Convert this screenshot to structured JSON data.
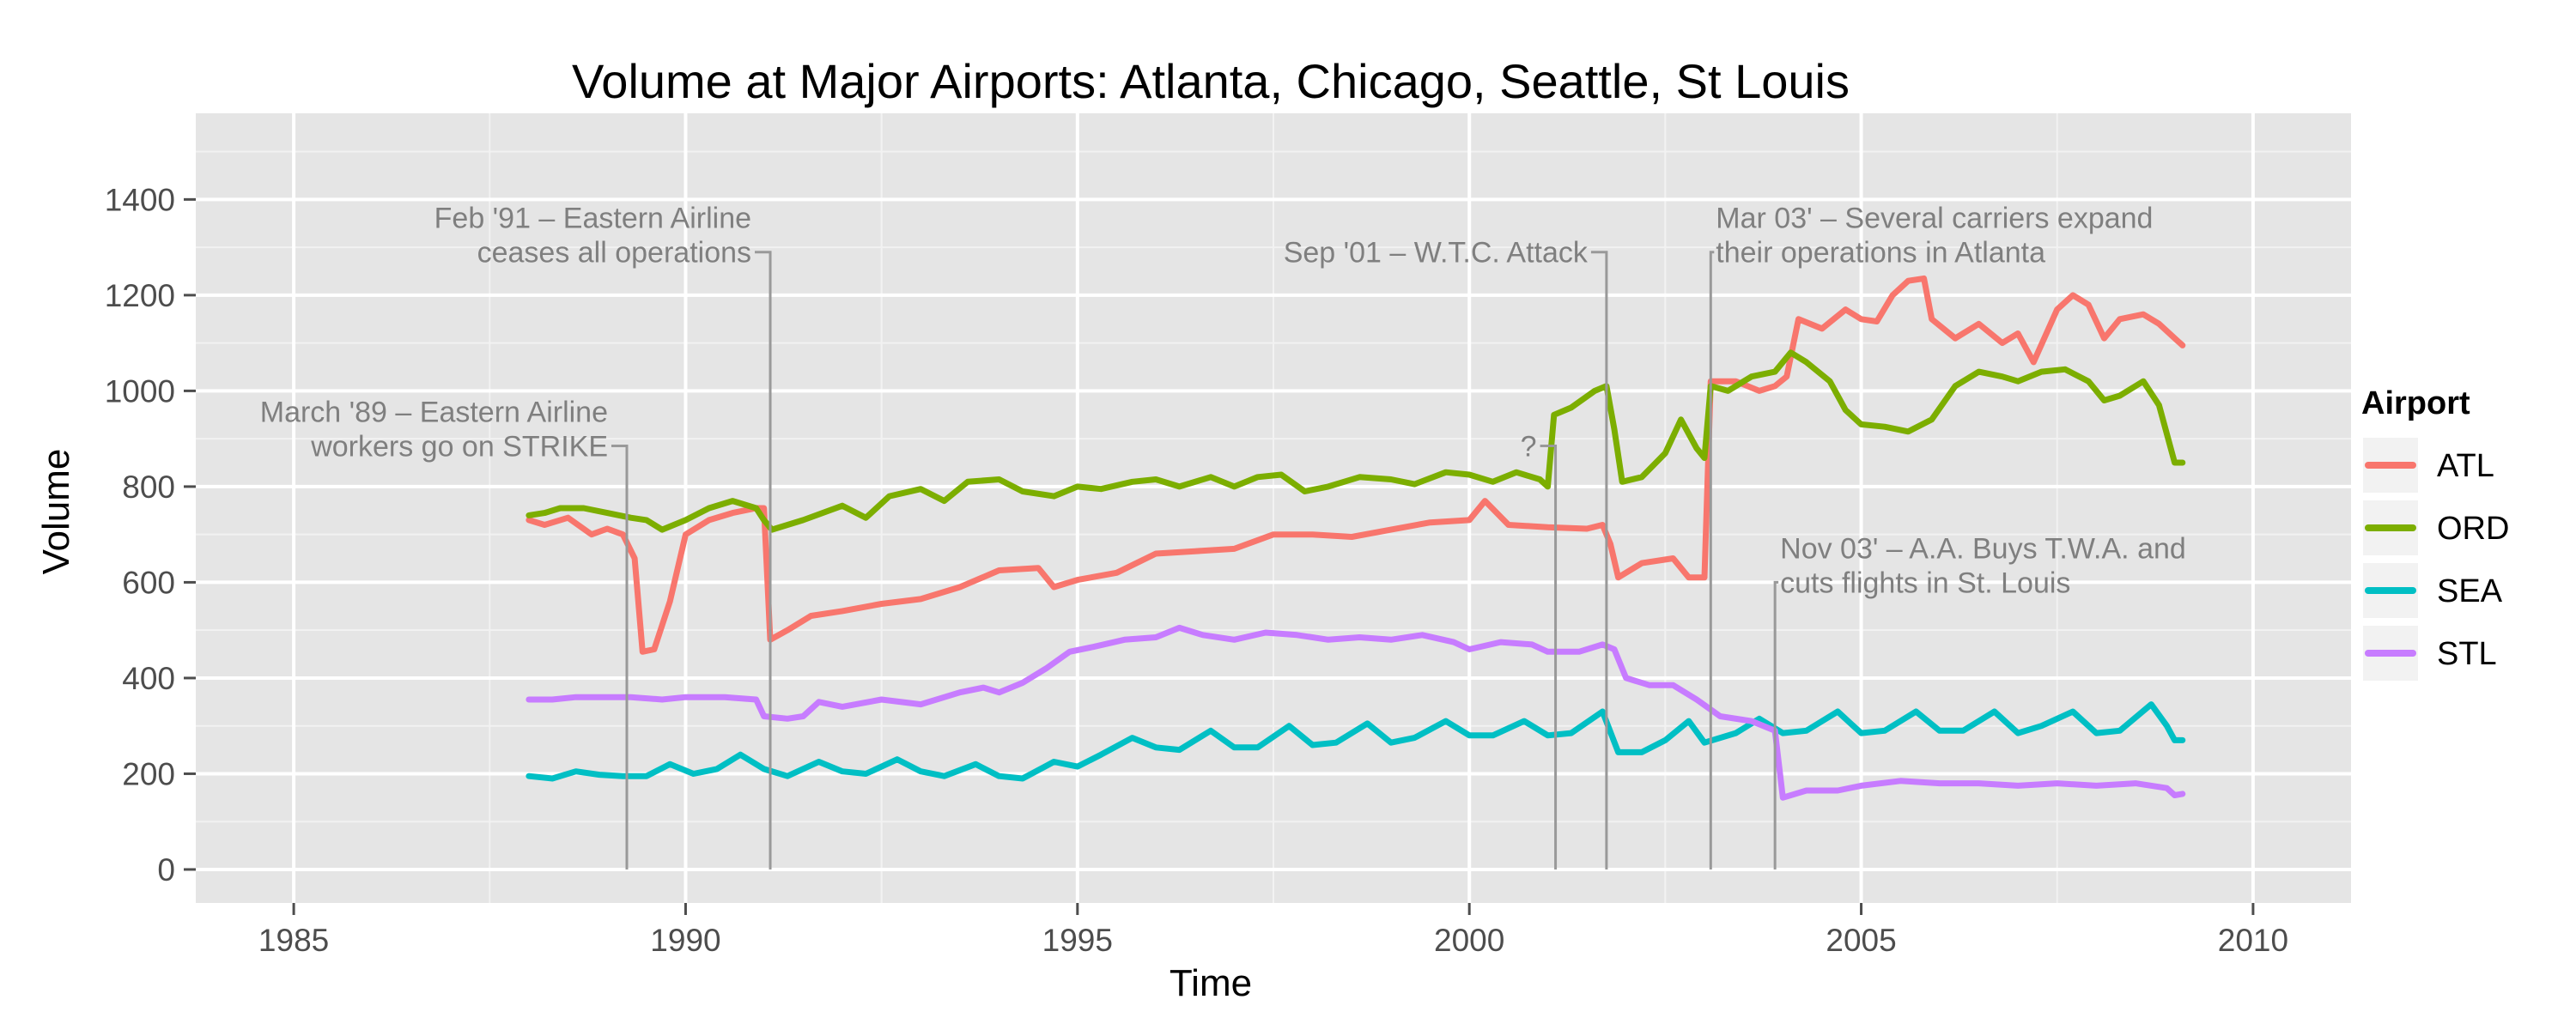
{
  "chart_data": {
    "type": "line",
    "title": "Volume at Major Airports: Atlanta, Chicago, Seattle, St Louis",
    "xlabel": "Time",
    "ylabel": "Volume",
    "xlim": [
      1983.75,
      2011.25
    ],
    "ylim": [
      -70,
      1580
    ],
    "x_ticks": [
      1985,
      1990,
      1995,
      2000,
      2005,
      2010
    ],
    "y_ticks": [
      0,
      200,
      400,
      600,
      800,
      1000,
      1200,
      1400
    ],
    "grid": true,
    "legend": {
      "title": "Airport",
      "position": "right"
    },
    "series": [
      {
        "name": "ATL",
        "color": "#F8766D",
        "points": [
          [
            1988.0,
            730
          ],
          [
            1988.2,
            720
          ],
          [
            1988.5,
            735
          ],
          [
            1988.8,
            700
          ],
          [
            1989.0,
            712
          ],
          [
            1989.2,
            700
          ],
          [
            1989.35,
            650
          ],
          [
            1989.45,
            455
          ],
          [
            1989.6,
            460
          ],
          [
            1989.8,
            560
          ],
          [
            1990.0,
            700
          ],
          [
            1990.3,
            730
          ],
          [
            1990.6,
            745
          ],
          [
            1990.9,
            755
          ],
          [
            1991.0,
            755
          ],
          [
            1991.08,
            480
          ],
          [
            1991.3,
            500
          ],
          [
            1991.6,
            530
          ],
          [
            1992.0,
            540
          ],
          [
            1992.5,
            555
          ],
          [
            1993.0,
            565
          ],
          [
            1993.5,
            590
          ],
          [
            1994.0,
            625
          ],
          [
            1994.5,
            630
          ],
          [
            1994.7,
            590
          ],
          [
            1995.0,
            605
          ],
          [
            1995.5,
            620
          ],
          [
            1996.0,
            660
          ],
          [
            1996.5,
            665
          ],
          [
            1997.0,
            670
          ],
          [
            1997.5,
            700
          ],
          [
            1998.0,
            700
          ],
          [
            1998.5,
            695
          ],
          [
            1999.0,
            710
          ],
          [
            1999.5,
            725
          ],
          [
            2000.0,
            730
          ],
          [
            2000.2,
            770
          ],
          [
            2000.5,
            720
          ],
          [
            2001.0,
            715
          ],
          [
            2001.5,
            712
          ],
          [
            2001.7,
            720
          ],
          [
            2001.8,
            680
          ],
          [
            2001.9,
            610
          ],
          [
            2002.2,
            640
          ],
          [
            2002.6,
            650
          ],
          [
            2002.8,
            610
          ],
          [
            2003.0,
            610
          ],
          [
            2003.08,
            1020
          ],
          [
            2003.4,
            1020
          ],
          [
            2003.7,
            1000
          ],
          [
            2003.9,
            1010
          ],
          [
            2004.05,
            1030
          ],
          [
            2004.2,
            1150
          ],
          [
            2004.5,
            1130
          ],
          [
            2004.8,
            1170
          ],
          [
            2005.0,
            1150
          ],
          [
            2005.2,
            1145
          ],
          [
            2005.4,
            1200
          ],
          [
            2005.6,
            1230
          ],
          [
            2005.8,
            1235
          ],
          [
            2005.9,
            1150
          ],
          [
            2006.2,
            1110
          ],
          [
            2006.5,
            1140
          ],
          [
            2006.8,
            1100
          ],
          [
            2007.0,
            1120
          ],
          [
            2007.2,
            1060
          ],
          [
            2007.5,
            1170
          ],
          [
            2007.7,
            1200
          ],
          [
            2007.9,
            1180
          ],
          [
            2008.1,
            1110
          ],
          [
            2008.3,
            1150
          ],
          [
            2008.6,
            1160
          ],
          [
            2008.8,
            1140
          ],
          [
            2009.0,
            1110
          ],
          [
            2009.1,
            1095
          ]
        ]
      },
      {
        "name": "ORD",
        "color": "#7CAE00",
        "points": [
          [
            1988.0,
            740
          ],
          [
            1988.2,
            745
          ],
          [
            1988.4,
            755
          ],
          [
            1988.7,
            755
          ],
          [
            1989.0,
            745
          ],
          [
            1989.3,
            735
          ],
          [
            1989.5,
            730
          ],
          [
            1989.7,
            710
          ],
          [
            1990.0,
            730
          ],
          [
            1990.3,
            755
          ],
          [
            1990.6,
            770
          ],
          [
            1990.9,
            755
          ],
          [
            1991.0,
            730
          ],
          [
            1991.1,
            710
          ],
          [
            1991.5,
            730
          ],
          [
            1992.0,
            760
          ],
          [
            1992.3,
            735
          ],
          [
            1992.6,
            780
          ],
          [
            1993.0,
            795
          ],
          [
            1993.3,
            770
          ],
          [
            1993.6,
            810
          ],
          [
            1994.0,
            815
          ],
          [
            1994.3,
            790
          ],
          [
            1994.7,
            780
          ],
          [
            1995.0,
            800
          ],
          [
            1995.3,
            795
          ],
          [
            1995.7,
            810
          ],
          [
            1996.0,
            815
          ],
          [
            1996.3,
            800
          ],
          [
            1996.7,
            820
          ],
          [
            1997.0,
            800
          ],
          [
            1997.3,
            820
          ],
          [
            1997.6,
            825
          ],
          [
            1997.9,
            790
          ],
          [
            1998.2,
            800
          ],
          [
            1998.6,
            820
          ],
          [
            1999.0,
            815
          ],
          [
            1999.3,
            805
          ],
          [
            1999.7,
            830
          ],
          [
            2000.0,
            825
          ],
          [
            2000.3,
            810
          ],
          [
            2000.6,
            830
          ],
          [
            2000.9,
            815
          ],
          [
            2001.0,
            800
          ],
          [
            2001.08,
            950
          ],
          [
            2001.3,
            965
          ],
          [
            2001.6,
            1000
          ],
          [
            2001.75,
            1010
          ],
          [
            2001.85,
            920
          ],
          [
            2001.95,
            810
          ],
          [
            2002.2,
            820
          ],
          [
            2002.5,
            870
          ],
          [
            2002.7,
            940
          ],
          [
            2002.9,
            880
          ],
          [
            2003.0,
            860
          ],
          [
            2003.08,
            1010
          ],
          [
            2003.3,
            1000
          ],
          [
            2003.6,
            1030
          ],
          [
            2003.9,
            1040
          ],
          [
            2004.1,
            1080
          ],
          [
            2004.3,
            1060
          ],
          [
            2004.6,
            1020
          ],
          [
            2004.8,
            960
          ],
          [
            2005.0,
            930
          ],
          [
            2005.3,
            925
          ],
          [
            2005.6,
            915
          ],
          [
            2005.9,
            940
          ],
          [
            2006.2,
            1010
          ],
          [
            2006.5,
            1040
          ],
          [
            2006.8,
            1030
          ],
          [
            2007.0,
            1020
          ],
          [
            2007.3,
            1040
          ],
          [
            2007.6,
            1045
          ],
          [
            2007.9,
            1020
          ],
          [
            2008.1,
            980
          ],
          [
            2008.3,
            990
          ],
          [
            2008.6,
            1020
          ],
          [
            2008.8,
            970
          ],
          [
            2009.0,
            850
          ],
          [
            2009.1,
            850
          ]
        ]
      },
      {
        "name": "SEA",
        "color": "#00BFC4",
        "points": [
          [
            1988.0,
            195
          ],
          [
            1988.3,
            190
          ],
          [
            1988.6,
            205
          ],
          [
            1988.9,
            198
          ],
          [
            1989.2,
            195
          ],
          [
            1989.5,
            195
          ],
          [
            1989.8,
            220
          ],
          [
            1990.1,
            200
          ],
          [
            1990.4,
            210
          ],
          [
            1990.7,
            240
          ],
          [
            1991.0,
            210
          ],
          [
            1991.3,
            195
          ],
          [
            1991.7,
            225
          ],
          [
            1992.0,
            205
          ],
          [
            1992.3,
            200
          ],
          [
            1992.7,
            230
          ],
          [
            1993.0,
            205
          ],
          [
            1993.3,
            195
          ],
          [
            1993.7,
            220
          ],
          [
            1994.0,
            195
          ],
          [
            1994.3,
            190
          ],
          [
            1994.7,
            225
          ],
          [
            1995.0,
            215
          ],
          [
            1995.3,
            240
          ],
          [
            1995.7,
            275
          ],
          [
            1996.0,
            255
          ],
          [
            1996.3,
            250
          ],
          [
            1996.7,
            290
          ],
          [
            1997.0,
            255
          ],
          [
            1997.3,
            255
          ],
          [
            1997.7,
            300
          ],
          [
            1998.0,
            260
          ],
          [
            1998.3,
            265
          ],
          [
            1998.7,
            305
          ],
          [
            1999.0,
            265
          ],
          [
            1999.3,
            275
          ],
          [
            1999.7,
            310
          ],
          [
            2000.0,
            280
          ],
          [
            2000.3,
            280
          ],
          [
            2000.7,
            310
          ],
          [
            2001.0,
            280
          ],
          [
            2001.3,
            285
          ],
          [
            2001.7,
            330
          ],
          [
            2001.9,
            245
          ],
          [
            2002.2,
            245
          ],
          [
            2002.5,
            270
          ],
          [
            2002.8,
            310
          ],
          [
            2003.0,
            265
          ],
          [
            2003.4,
            285
          ],
          [
            2003.7,
            315
          ],
          [
            2004.0,
            285
          ],
          [
            2004.3,
            290
          ],
          [
            2004.7,
            330
          ],
          [
            2005.0,
            285
          ],
          [
            2005.3,
            290
          ],
          [
            2005.7,
            330
          ],
          [
            2006.0,
            290
          ],
          [
            2006.3,
            290
          ],
          [
            2006.7,
            330
          ],
          [
            2007.0,
            285
          ],
          [
            2007.3,
            300
          ],
          [
            2007.7,
            330
          ],
          [
            2008.0,
            285
          ],
          [
            2008.3,
            290
          ],
          [
            2008.7,
            345
          ],
          [
            2008.9,
            300
          ],
          [
            2009.0,
            270
          ],
          [
            2009.1,
            270
          ]
        ]
      },
      {
        "name": "STL",
        "color": "#C77CFF",
        "points": [
          [
            1988.0,
            355
          ],
          [
            1988.3,
            355
          ],
          [
            1988.6,
            360
          ],
          [
            1989.0,
            360
          ],
          [
            1989.3,
            360
          ],
          [
            1989.7,
            355
          ],
          [
            1990.0,
            360
          ],
          [
            1990.5,
            360
          ],
          [
            1990.9,
            355
          ],
          [
            1991.0,
            320
          ],
          [
            1991.3,
            315
          ],
          [
            1991.5,
            320
          ],
          [
            1991.7,
            350
          ],
          [
            1992.0,
            340
          ],
          [
            1992.5,
            355
          ],
          [
            1993.0,
            345
          ],
          [
            1993.5,
            370
          ],
          [
            1993.8,
            380
          ],
          [
            1994.0,
            370
          ],
          [
            1994.3,
            390
          ],
          [
            1994.6,
            420
          ],
          [
            1994.9,
            455
          ],
          [
            1995.2,
            465
          ],
          [
            1995.6,
            480
          ],
          [
            1996.0,
            485
          ],
          [
            1996.3,
            505
          ],
          [
            1996.6,
            490
          ],
          [
            1997.0,
            480
          ],
          [
            1997.4,
            495
          ],
          [
            1997.8,
            490
          ],
          [
            1998.2,
            480
          ],
          [
            1998.6,
            485
          ],
          [
            1999.0,
            480
          ],
          [
            1999.4,
            490
          ],
          [
            1999.8,
            475
          ],
          [
            2000.0,
            460
          ],
          [
            2000.4,
            475
          ],
          [
            2000.8,
            470
          ],
          [
            2001.0,
            455
          ],
          [
            2001.4,
            455
          ],
          [
            2001.7,
            470
          ],
          [
            2001.85,
            460
          ],
          [
            2002.0,
            400
          ],
          [
            2002.3,
            385
          ],
          [
            2002.6,
            385
          ],
          [
            2002.9,
            355
          ],
          [
            2003.2,
            320
          ],
          [
            2003.6,
            310
          ],
          [
            2003.9,
            290
          ],
          [
            2004.0,
            150
          ],
          [
            2004.3,
            165
          ],
          [
            2004.7,
            165
          ],
          [
            2005.0,
            175
          ],
          [
            2005.5,
            185
          ],
          [
            2006.0,
            180
          ],
          [
            2006.5,
            180
          ],
          [
            2007.0,
            175
          ],
          [
            2007.5,
            180
          ],
          [
            2008.0,
            175
          ],
          [
            2008.5,
            180
          ],
          [
            2008.9,
            170
          ],
          [
            2009.0,
            155
          ],
          [
            2009.1,
            158
          ]
        ]
      }
    ],
    "annotations": [
      {
        "lines": [
          "March '89 – Eastern Airline",
          "workers go on STRIKE"
        ],
        "x": 1989.25,
        "label_y": 885,
        "anchor": "end"
      },
      {
        "lines": [
          "Feb '91 – Eastern Airline",
          "ceases all operations"
        ],
        "x": 1991.08,
        "label_y": 1290,
        "anchor": "end"
      },
      {
        "lines": [
          "?"
        ],
        "x": 2001.1,
        "label_y": 885,
        "anchor": "end"
      },
      {
        "lines": [
          "Sep '01 – W.T.C. Attack"
        ],
        "x": 2001.75,
        "label_y": 1290,
        "anchor": "end"
      },
      {
        "lines": [
          "Mar 03' – Several carriers expand",
          "their operations in Atlanta"
        ],
        "x": 2003.08,
        "label_y": 1290,
        "anchor": "start"
      },
      {
        "lines": [
          "Nov 03' – A.A. Buys T.W.A. and",
          "cuts flights in St. Louis"
        ],
        "x": 2003.9,
        "label_y": 600,
        "anchor": "start"
      }
    ]
  }
}
